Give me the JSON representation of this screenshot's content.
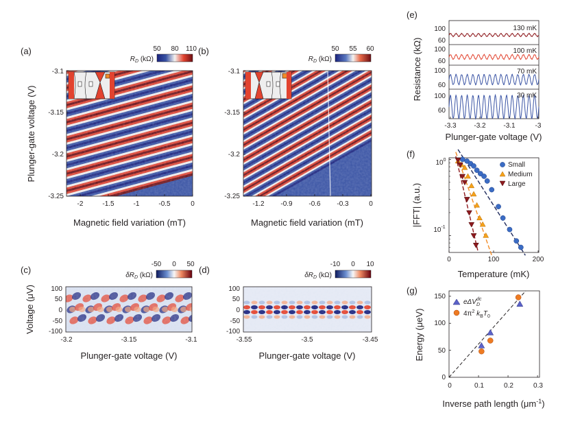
{
  "figure": {
    "panel_letters": [
      "(a)",
      "(b)",
      "(c)",
      "(d)",
      "(e)",
      "(f)",
      "(g)"
    ],
    "colors": {
      "blue_deep": "#1a237e",
      "blue": "#3953a4",
      "white": "#f4f2f0",
      "red": "#e2432f",
      "dark_red": "#6e0f14",
      "orange": "#f28c28",
      "amber": "#f5a21b",
      "maroon": "#8e1a1e",
      "mark_blue": "#3b6cc4",
      "mark_orange": "#ee7b22",
      "mark_red": "#e2432f",
      "violet": "#5b62c8",
      "axis": "#231f20"
    }
  },
  "panel_a": {
    "ylabel": "Plunger-gate voltage (V)",
    "xlabel": "Magnetic field variation (mT)",
    "xticks": [
      "-2",
      "-1.5",
      "-1",
      "-0.5",
      "0"
    ],
    "yticks": [
      "-3.1",
      "-3.15",
      "-3.2",
      "-3.25"
    ],
    "colorbar": {
      "label_sym": "R",
      "label_sub": "D",
      "label_unit": " (kΩ)",
      "ticks": [
        "50",
        "80",
        "110"
      ]
    }
  },
  "panel_b": {
    "xlabel": "Magnetic field variation (mT)",
    "xticks": [
      "-1.2",
      "-0.9",
      "-0.6",
      "-0.3",
      "0"
    ],
    "yticks": [
      "-3.1",
      "-3.15",
      "-3.2",
      "-3.25"
    ],
    "colorbar": {
      "label_sym": "R",
      "label_sub": "D",
      "label_unit": " (kΩ)",
      "ticks": [
        "50",
        "55",
        "60"
      ]
    }
  },
  "panel_c": {
    "ylabel": "Voltage (μV)",
    "xlabel": "Plunger-gate voltage (V)",
    "xticks": [
      "-3.2",
      "-3.15",
      "-3.1"
    ],
    "yticks": [
      "100",
      "50",
      "0",
      "-50",
      "-100"
    ],
    "colorbar": {
      "label_sym": "δR",
      "label_sub": "D",
      "label_unit": " (kΩ)",
      "ticks": [
        "-50",
        "0",
        "50"
      ]
    }
  },
  "panel_d": {
    "xlabel": "Plunger-gate voltage (V)",
    "xticks": [
      "-3.55",
      "-3.5",
      "-3.45"
    ],
    "yticks": [
      "100",
      "50",
      "0",
      "-50",
      "-100"
    ],
    "colorbar": {
      "label_sym": "δR",
      "label_sub": "D",
      "label_unit": " (kΩ)",
      "ticks": [
        "-10",
        "0",
        "10"
      ]
    }
  },
  "panel_e": {
    "ylabel": "Resistance (kΩ)",
    "xlabel": "Plunger-gate voltage (V)",
    "xticks": [
      "-3.3",
      "-3.2",
      "-3.1",
      "-3"
    ],
    "row_yticks": [
      "100",
      "60"
    ],
    "traces": [
      {
        "label": "130 mK",
        "amplitude": 0.12,
        "color": "#8e1a1e"
      },
      {
        "label": "100 mK",
        "amplitude": 0.22,
        "color": "#e2432f"
      },
      {
        "label": "70 mK",
        "amplitude": 0.42,
        "color": "#3953a4"
      },
      {
        "label": "30 mK",
        "amplitude": 0.78,
        "color": "#3953a4"
      }
    ],
    "oscillation_periods_in_range": 16
  },
  "panel_f": {
    "ylabel": "|FFT| (a.u.)",
    "xlabel": "Temperature (mK)",
    "xticks": [
      "0",
      "100",
      "200"
    ],
    "ytick_main": "10",
    "ytick_top_exp": "0",
    "ytick_mid_exp": "-1"
  },
  "panel_g": {
    "ylabel": "Energy (μeV)",
    "xlabel_main": "Inverse path length (μm",
    "xlabel_exp": "-1",
    "xlabel_end": ")",
    "xticks": [
      "0",
      "0.1",
      "0.2",
      "0.3"
    ],
    "yticks": [
      "0",
      "50",
      "100",
      "150"
    ],
    "legend": [
      {
        "marker": "triangle",
        "text_a": "eΔV",
        "text_sub": "D",
        "text_sup": "dc"
      },
      {
        "marker": "circle",
        "text_a": "4π",
        "text_sup": "2",
        "text_b": " k",
        "text_sub": "B",
        "text_c": "T",
        "text_sub2": "0"
      }
    ]
  },
  "chart_data": [
    {
      "type": "scatter",
      "panel": "f",
      "title": "",
      "xlabel": "Temperature (mK)",
      "ylabel": "|FFT| (a.u.)",
      "xlim": [
        0,
        200
      ],
      "ylim": [
        0.06,
        1.05
      ],
      "yscale": "log",
      "legend_position": "top-right",
      "series": [
        {
          "name": "Small",
          "marker": "circle",
          "color": "#3b6cc4",
          "x": [
            30,
            40,
            48,
            55,
            62,
            70,
            78,
            85,
            95,
            110,
            120,
            135,
            150,
            160
          ],
          "y": [
            1.0,
            0.95,
            0.88,
            0.82,
            0.72,
            0.65,
            0.6,
            0.52,
            0.4,
            0.24,
            0.17,
            0.12,
            0.085,
            0.07
          ],
          "fit": {
            "x": [
              20,
              170
            ],
            "y": [
              1.35,
              0.055
            ]
          }
        },
        {
          "name": "Medium",
          "marker": "triangle-up",
          "color": "#f5a21b",
          "x": [
            20,
            28,
            35,
            42,
            50,
            55,
            62,
            68,
            75,
            82
          ],
          "y": [
            0.95,
            0.85,
            0.78,
            0.6,
            0.45,
            0.35,
            0.25,
            0.17,
            0.14,
            0.1
          ],
          "fit": {
            "x": [
              15,
              95
            ],
            "y": [
              1.25,
              0.055
            ]
          }
        },
        {
          "name": "Large",
          "marker": "triangle-down",
          "color": "#8e1a1e",
          "x": [
            20,
            25,
            30,
            35,
            40,
            45,
            50,
            55,
            60
          ],
          "y": [
            0.98,
            0.85,
            0.6,
            0.5,
            0.3,
            0.2,
            0.14,
            0.1,
            0.075
          ],
          "fit": {
            "x": [
              15,
              65
            ],
            "y": [
              1.1,
              0.06
            ]
          }
        }
      ]
    },
    {
      "type": "scatter",
      "panel": "g",
      "title": "",
      "xlabel": "Inverse path length (μm-1)",
      "ylabel": "Energy (μeV)",
      "xlim": [
        0,
        0.3
      ],
      "ylim": [
        0,
        160
      ],
      "legend_position": "top-left",
      "series": [
        {
          "name": "eΔV_D^dc",
          "marker": "triangle-up",
          "color": "#5b62c8",
          "x": [
            0.11,
            0.14,
            0.24
          ],
          "y": [
            58,
            82,
            135
          ]
        },
        {
          "name": "4π^2 k_B T_0",
          "marker": "circle",
          "color": "#ee7b22",
          "x": [
            0.11,
            0.14,
            0.235
          ],
          "y": [
            48,
            68,
            148
          ]
        }
      ],
      "fit_line": {
        "x": [
          0,
          0.26
        ],
        "y": [
          0,
          160
        ]
      }
    },
    {
      "type": "line",
      "panel": "e",
      "title": "",
      "xlabel": "Plunger-gate voltage (V)",
      "ylabel": "Resistance (kΩ)",
      "xlim": [
        -3.3,
        -3.0
      ],
      "series_labels": [
        "130 mK",
        "100 mK",
        "70 mK",
        "30 mK"
      ]
    }
  ]
}
